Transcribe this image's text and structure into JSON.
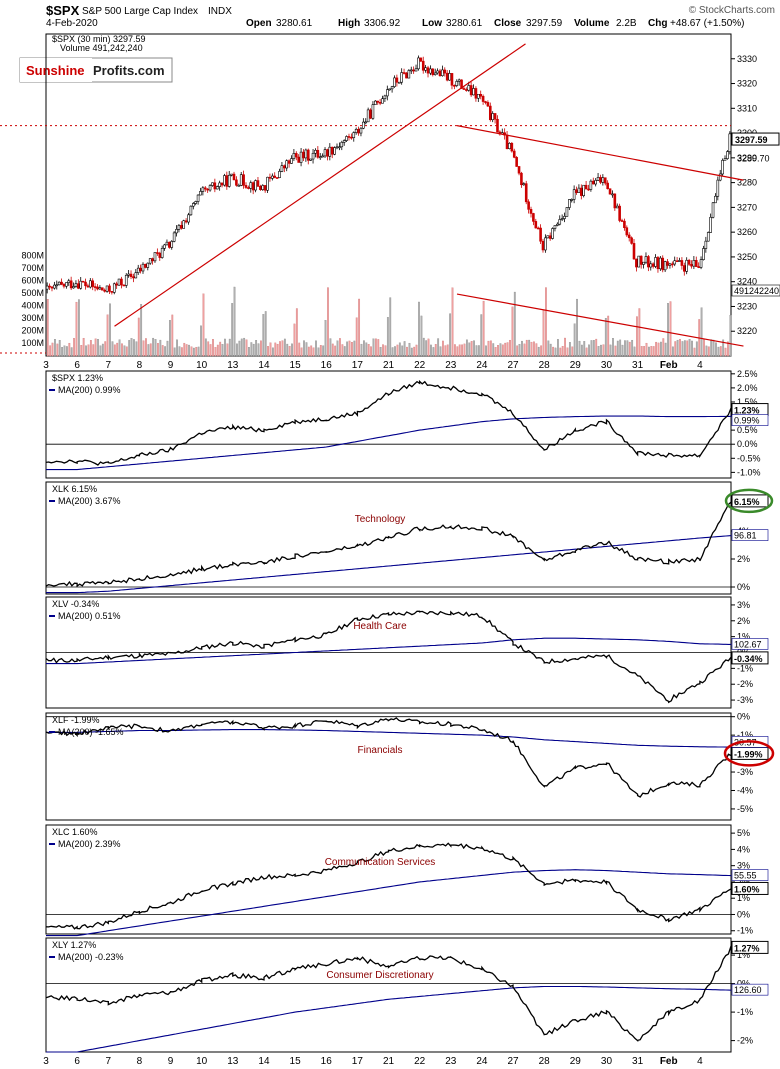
{
  "header": {
    "symbol": "$SPX",
    "name": "S&P 500 Large Cap Index",
    "exchange": "INDX",
    "date": "4-Feb-2020",
    "open_label": "Open",
    "open": "3280.61",
    "high_label": "High",
    "high": "3306.92",
    "low_label": "Low",
    "low": "3280.61",
    "close_label": "Close",
    "close": "3297.59",
    "volume_label": "Volume",
    "volume": "2.2B",
    "chg_label": "Chg",
    "chg": "+48.67 (+1.50%)",
    "watermark": "© StockCharts.com",
    "legend_price": "$SPX (30 min) 3297.59",
    "legend_volume": "Volume 491,242,240"
  },
  "logo": {
    "part1": "Sunshine",
    "part2": "Profits.com",
    "color1": "#cc0000",
    "color2": "#222222"
  },
  "colors": {
    "up": "#000000",
    "down": "#cc0000",
    "ma": "#00008b",
    "trend": "#cc0000",
    "vol_up": "#b0b0b0",
    "vol_down": "#f0a0a0",
    "green_circle": "#3a8a2a",
    "red_circle": "#cc0000"
  },
  "chart_data": [
    {
      "type": "candlestick",
      "title": "$SPX S&P 500 Large Cap Index INDX",
      "interval": "30 min",
      "ylim": [
        3210,
        3340
      ],
      "yticks": [
        3220,
        3230,
        3240,
        3250,
        3260,
        3270,
        3280,
        3290,
        3300,
        3310,
        3320,
        3330
      ],
      "last_value": "3297.59",
      "secondary_label": "3289.70",
      "volume_axis": {
        "labels": [
          "100M",
          "200M",
          "300M",
          "400M",
          "500M",
          "600M",
          "700M",
          "800M"
        ],
        "ylim": [
          0,
          800
        ],
        "last_volume": "491242240"
      },
      "x_labels": [
        "3",
        "6",
        "7",
        "8",
        "9",
        "10",
        "13",
        "14",
        "15",
        "16",
        "17",
        "21",
        "22",
        "23",
        "24",
        "27",
        "28",
        "29",
        "30",
        "31",
        "Feb",
        "4"
      ],
      "close_by_day": [
        3240,
        3236,
        3244,
        3255,
        3275,
        3282,
        3278,
        3290,
        3292,
        3300,
        3318,
        3328,
        3322,
        3314,
        3292,
        3254,
        3275,
        3282,
        3248,
        3247,
        3246,
        3299
      ],
      "trendlines": [
        {
          "from": [
            "7",
            3222
          ],
          "to": [
            "24",
            3336
          ]
        },
        {
          "from": [
            "23",
            3303
          ],
          "to": [
            "4",
            3281
          ]
        },
        {
          "from": [
            "23",
            3235
          ],
          "to": [
            "4",
            3214
          ]
        }
      ],
      "reference_level": 3303
    },
    {
      "type": "line",
      "symbol": "$SPX",
      "legend": "$SPX 1.23%",
      "ma_legend": "MA(200) 0.99%",
      "ylim": [
        -1.2,
        2.6
      ],
      "yticks": [
        "2.5%",
        "2.0%",
        "1.5%",
        "1.0%",
        "0.5%",
        "0.0%",
        "-0.5%",
        "-1.0%"
      ],
      "last_label": "1.23%",
      "ma_label": "0.99%",
      "values": [
        -0.6,
        -0.7,
        -0.4,
        -0.2,
        0.4,
        0.6,
        0.5,
        0.8,
        0.9,
        1.1,
        1.8,
        2.2,
        2.0,
        1.8,
        1.1,
        -0.2,
        0.5,
        0.8,
        -0.3,
        -0.4,
        -0.4,
        1.23
      ],
      "ma": [
        -0.9,
        -0.8,
        -0.7,
        -0.6,
        -0.5,
        -0.4,
        -0.3,
        -0.2,
        -0.1,
        0.1,
        0.3,
        0.5,
        0.65,
        0.8,
        0.9,
        0.95,
        0.98,
        1.0,
        1.0,
        0.98,
        0.98,
        0.99
      ]
    },
    {
      "type": "line",
      "symbol": "XLK",
      "sector": "Technology",
      "legend": "XLK 6.15%",
      "ma_legend": "MA(200) 3.67%",
      "ylim": [
        -0.5,
        7.5
      ],
      "yticks": [
        "4%",
        "2%",
        "0%"
      ],
      "last_label": "6.15%",
      "ma_label": "96.81",
      "values": [
        0.2,
        0.3,
        0.6,
        0.8,
        1.3,
        1.6,
        1.8,
        2.2,
        2.5,
        2.9,
        3.5,
        4.2,
        4.3,
        4.2,
        3.6,
        1.9,
        2.6,
        3.2,
        2.0,
        1.8,
        2.0,
        6.15
      ],
      "ma": [
        -0.4,
        -0.3,
        -0.1,
        0.1,
        0.3,
        0.5,
        0.7,
        0.9,
        1.1,
        1.3,
        1.5,
        1.7,
        1.9,
        2.1,
        2.3,
        2.5,
        2.7,
        2.9,
        3.1,
        3.3,
        3.5,
        3.67
      ]
    },
    {
      "type": "line",
      "symbol": "XLV",
      "sector": "Health Care",
      "legend": "XLV -0.34%",
      "ma_legend": "MA(200) 0.51%",
      "ylim": [
        -3.5,
        3.5
      ],
      "yticks": [
        "3%",
        "2%",
        "1%",
        "0%",
        "-1%",
        "-2%",
        "-3%"
      ],
      "last_label": "-0.34%",
      "ma_label": "102.67",
      "values": [
        -0.5,
        -0.3,
        -0.2,
        -0.1,
        0.3,
        0.6,
        0.4,
        0.8,
        1.1,
        2.1,
        2.4,
        2.5,
        2.5,
        2.3,
        0.6,
        -0.6,
        -0.4,
        -0.2,
        -1.5,
        -3.0,
        -1.9,
        -0.34
      ],
      "ma": [
        -0.7,
        -0.6,
        -0.5,
        -0.4,
        -0.3,
        -0.2,
        -0.1,
        0.0,
        0.1,
        0.2,
        0.3,
        0.4,
        0.5,
        0.6,
        0.8,
        0.9,
        0.9,
        0.85,
        0.8,
        0.7,
        0.55,
        0.51
      ]
    },
    {
      "type": "line",
      "symbol": "XLF",
      "sector": "Financials",
      "legend": "XLF -1.99%",
      "ma_legend": "MA(200) -1.65%",
      "ylim": [
        -5.6,
        0.2
      ],
      "yticks": [
        "0%",
        "-1%",
        "-2%",
        "-3%",
        "-4%",
        "-5%"
      ],
      "last_label": "-1.99%",
      "ma_label": "30.57",
      "values": [
        -0.9,
        -0.6,
        -0.5,
        -0.8,
        -0.4,
        -0.3,
        -0.6,
        -0.5,
        -0.2,
        -0.5,
        -0.1,
        -0.3,
        -0.4,
        -0.7,
        -1.3,
        -3.8,
        -2.8,
        -2.5,
        -4.3,
        -3.6,
        -3.7,
        -1.99
      ],
      "ma": [
        -0.85,
        -0.8,
        -0.75,
        -0.75,
        -0.72,
        -0.7,
        -0.7,
        -0.72,
        -0.75,
        -0.8,
        -0.85,
        -0.9,
        -0.95,
        -1.0,
        -1.1,
        -1.25,
        -1.35,
        -1.45,
        -1.55,
        -1.6,
        -1.63,
        -1.65
      ]
    },
    {
      "type": "line",
      "symbol": "XLC",
      "sector": "Communication Services",
      "legend": "XLC 1.60%",
      "ma_legend": "MA(200) 2.39%",
      "ylim": [
        -1.2,
        5.5
      ],
      "yticks": [
        "5%",
        "4%",
        "3%",
        "2%",
        "1%",
        "0%",
        "-1%"
      ],
      "last_label": "1.60%",
      "ma_label": "55.55",
      "values": [
        -0.8,
        -0.5,
        0.2,
        0.7,
        1.5,
        1.9,
        2.3,
        2.4,
        2.7,
        3.2,
        3.9,
        4.2,
        4.3,
        4.1,
        3.4,
        1.9,
        2.1,
        2.0,
        0.3,
        -0.3,
        0.3,
        1.6
      ],
      "ma": [
        -1.3,
        -1.0,
        -0.7,
        -0.4,
        -0.1,
        0.2,
        0.5,
        0.8,
        1.1,
        1.4,
        1.7,
        2.0,
        2.2,
        2.4,
        2.6,
        2.7,
        2.75,
        2.7,
        2.6,
        2.5,
        2.45,
        2.39
      ]
    },
    {
      "type": "line",
      "symbol": "XLY",
      "sector": "Consumer Discretionary",
      "legend": "XLY 1.27%",
      "ma_legend": "MA(200) -0.23%",
      "ylim": [
        -2.4,
        1.6
      ],
      "yticks": [
        "1%",
        "0%",
        "-1%",
        "-2%"
      ],
      "last_label": "1.27%",
      "ma_label": "126.60",
      "values": [
        -0.5,
        -0.7,
        -0.4,
        -0.3,
        0.1,
        0.3,
        0.2,
        0.5,
        0.7,
        0.9,
        0.6,
        0.9,
        0.9,
        0.5,
        -0.1,
        -1.8,
        -1.3,
        -1.0,
        -2.0,
        -1.0,
        -0.6,
        1.27
      ],
      "ma": [
        -2.4,
        -2.2,
        -2.0,
        -1.8,
        -1.6,
        -1.4,
        -1.2,
        -1.0,
        -0.85,
        -0.7,
        -0.55,
        -0.45,
        -0.35,
        -0.25,
        -0.15,
        -0.1,
        -0.1,
        -0.12,
        -0.15,
        -0.18,
        -0.2,
        -0.23
      ]
    }
  ]
}
